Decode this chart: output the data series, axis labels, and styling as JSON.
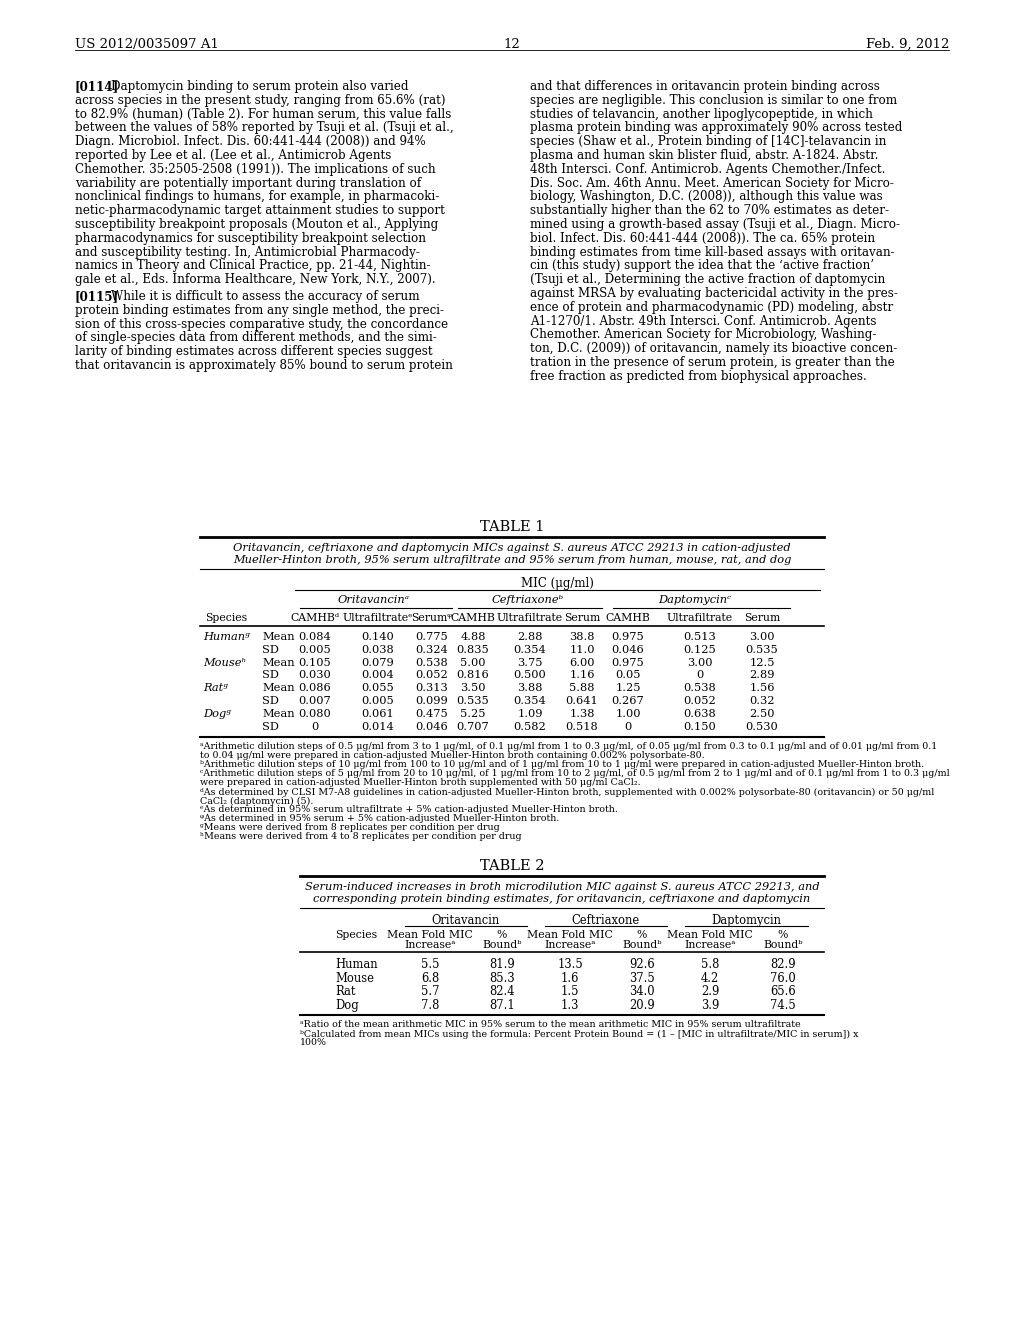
{
  "page_header_left": "US 2012/0035097 A1",
  "page_header_right": "Feb. 9, 2012",
  "page_number": "12",
  "bg_color": "#ffffff",
  "left_lines_114": [
    "[0114]   Daptomycin binding to serum protein also varied",
    "across species in the present study, ranging from 65.6% (rat)",
    "to 82.9% (human) (Table 2). For human serum, this value falls",
    "between the values of 58% reported by Tsuji et al. (Tsuji et al.,",
    "Diagn. Microbiol. Infect. Dis. 60:441-444 (2008)) and 94%",
    "reported by Lee et al. (Lee et al., Antimicrob Agents",
    "Chemother. 35:2505-2508 (1991)). The implications of such",
    "variability are potentially important during translation of",
    "nonclinical findings to humans, for example, in pharmacoki-",
    "netic-pharmacodynamic target attainment studies to support",
    "susceptibility breakpoint proposals (Mouton et al., Applying",
    "pharmacodynamics for susceptibility breakpoint selection",
    "and susceptibility testing. In, Antimicrobial Pharmacody-",
    "namics in Theory and Clinical Practice, pp. 21-44, Nightin-",
    "gale et al., Eds. Informa Healthcare, New York, N.Y., 2007)."
  ],
  "left_lines_115": [
    "[0115]   While it is difficult to assess the accuracy of serum",
    "protein binding estimates from any single method, the preci-",
    "sion of this cross-species comparative study, the concordance",
    "of single-species data from different methods, and the simi-",
    "larity of binding estimates across different species suggest",
    "that oritavancin is approximately 85% bound to serum protein"
  ],
  "right_lines_114": [
    "and that differences in oritavancin protein binding across",
    "species are negligible. This conclusion is similar to one from",
    "studies of telavancin, another lipoglycopeptide, in which",
    "plasma protein binding was approximately 90% across tested",
    "species (Shaw et al., Protein binding of [14C]-telavancin in",
    "plasma and human skin blister fluid, abstr. A-1824. Abstr.",
    "48th Intersci. Conf. Antimicrob. Agents Chemother./Infect.",
    "Dis. Soc. Am. 46th Annu. Meet. American Society for Micro-",
    "biology, Washington, D.C. (2008)), although this value was",
    "substantially higher than the 62 to 70% estimates as deter-",
    "mined using a growth-based assay (Tsuji et al., Diagn. Micro-",
    "biol. Infect. Dis. 60:441-444 (2008)). The ca. 65% protein",
    "binding estimates from time kill-based assays with oritavan-",
    "cin (this study) support the idea that the ‘active fraction’",
    "(Tsuji et al., Determining the active fraction of daptomycin",
    "against MRSA by evaluating bactericidal activity in the pres-",
    "ence of protein and pharmacodynamic (PD) modeling, abstr",
    "A1-1270/1. Abstr. 49th Intersci. Conf. Antimicrob. Agents",
    "Chemother. American Society for Microbiology, Washing-",
    "ton, D.C. (2009)) of oritavancin, namely its bioactive concen-",
    "tration in the presence of serum protein, is greater than the",
    "free fraction as predicted from biophysical approaches."
  ],
  "table1_title": "TABLE 1",
  "table1_cap1": "Oritavancin, ceftriaxone and daptomycin MICs against S. aureus ATCC 29213 in cation-adjusted",
  "table1_cap1_italic": "S. aureus",
  "table1_cap2": "Mueller-Hinton broth, 95% serum ultrafiltrate and 95% serum from human, mouse, rat, and dog",
  "table1_mic": "MIC (μg/ml)",
  "table1_data": [
    [
      "Humanᵍ",
      "Mean",
      "0.084",
      "0.140",
      "0.775",
      "4.88",
      "2.88",
      "38.8",
      "0.975",
      "0.513",
      "3.00"
    ],
    [
      "",
      "SD",
      "0.005",
      "0.038",
      "0.324",
      "0.835",
      "0.354",
      "11.0",
      "0.046",
      "0.125",
      "0.535"
    ],
    [
      "Mouseʰ",
      "Mean",
      "0.105",
      "0.079",
      "0.538",
      "5.00",
      "3.75",
      "6.00",
      "0.975",
      "3.00",
      "12.5"
    ],
    [
      "",
      "SD",
      "0.030",
      "0.004",
      "0.052",
      "0.816",
      "0.500",
      "1.16",
      "0.05",
      "0",
      "2.89"
    ],
    [
      "Ratᵍ",
      "Mean",
      "0.086",
      "0.055",
      "0.313",
      "3.50",
      "3.88",
      "5.88",
      "1.25",
      "0.538",
      "1.56"
    ],
    [
      "",
      "SD",
      "0.007",
      "0.005",
      "0.099",
      "0.535",
      "0.354",
      "0.641",
      "0.267",
      "0.052",
      "0.32"
    ],
    [
      "Dogᵍ",
      "Mean",
      "0.080",
      "0.061",
      "0.475",
      "5.25",
      "1.09",
      "1.38",
      "1.00",
      "0.638",
      "2.50"
    ],
    [
      "",
      "SD",
      "0",
      "0.014",
      "0.046",
      "0.707",
      "0.582",
      "0.518",
      "0",
      "0.150",
      "0.530"
    ]
  ],
  "table1_fn": [
    "ᵃArithmetic dilution steps of 0.5 μg/ml from 3 to 1 μg/ml, of 0.1 μg/ml from 1 to 0.3 μg/ml, of 0.05 μg/ml from 0.3 to 0.1 μg/ml and of 0.01 μg/ml from 0.1",
    "to 0.04 μg/ml were prepared in cation-adjusted Mueller-Hinton broth containing 0.002% polysorbate-80.",
    "ᵇArithmetic dilution steps of 10 μg/ml from 100 to 10 μg/ml and of 1 μg/ml from 10 to 1 μg/ml were prepared in cation-adjusted Mueller-Hinton broth.",
    "ᶜArithmetic dilution steps of 5 μg/ml from 20 to 10 μg/ml, of 1 μg/ml from 10 to 2 μg/ml, of 0.5 μg/ml from 2 to 1 μg/ml and of 0.1 μg/ml from 1 to 0.3 μg/ml",
    "were prepared in cation-adjusted Mueller-Hinton broth supplemented with 50 μg/ml CaCl₂.",
    "ᵈAs determined by CLSI M7-A8 guidelines in cation-adjusted Mueller-Hinton broth, supplemented with 0.002% polysorbate-80 (oritavancin) or 50 μg/ml",
    "CaCl₂ (daptomycin) (5).",
    "ᵉAs determined in 95% serum ultrafiltrate + 5% cation-adjusted Mueller-Hinton broth.",
    "ᵠAs determined in 95% serum + 5% cation-adjusted Mueller-Hinton broth.",
    "ᵍMeans were derived from 8 replicates per condition per drug",
    "ʰMeans were derived from 4 to 8 replicates per condition per drug"
  ],
  "table2_title": "TABLE 2",
  "table2_cap1": "Serum-induced increases in broth microdilution MIC against S. aureus ATCC 29213, and",
  "table2_cap2": "corresponding protein binding estimates, for oritavancin, ceftriaxone and daptomycin",
  "table2_data": [
    [
      "Human",
      "5.5",
      "81.9",
      "13.5",
      "92.6",
      "5.8",
      "82.9"
    ],
    [
      "Mouse",
      "6.8",
      "85.3",
      "1.6",
      "37.5",
      "4.2",
      "76.0"
    ],
    [
      "Rat",
      "5.7",
      "82.4",
      "1.5",
      "34.0",
      "2.9",
      "65.6"
    ],
    [
      "Dog",
      "7.8",
      "87.1",
      "1.3",
      "20.9",
      "3.9",
      "74.5"
    ]
  ],
  "table2_fn": [
    "ᵃRatio of the mean arithmetic MIC in 95% serum to the mean arithmetic MIC in 95% serum ultrafiltrate",
    "ᵇCalculated from mean MICs using the formula: Percent Protein Bound = (1 – [MIC in ultrafiltrate/MIC in serum]) x",
    "100%"
  ]
}
